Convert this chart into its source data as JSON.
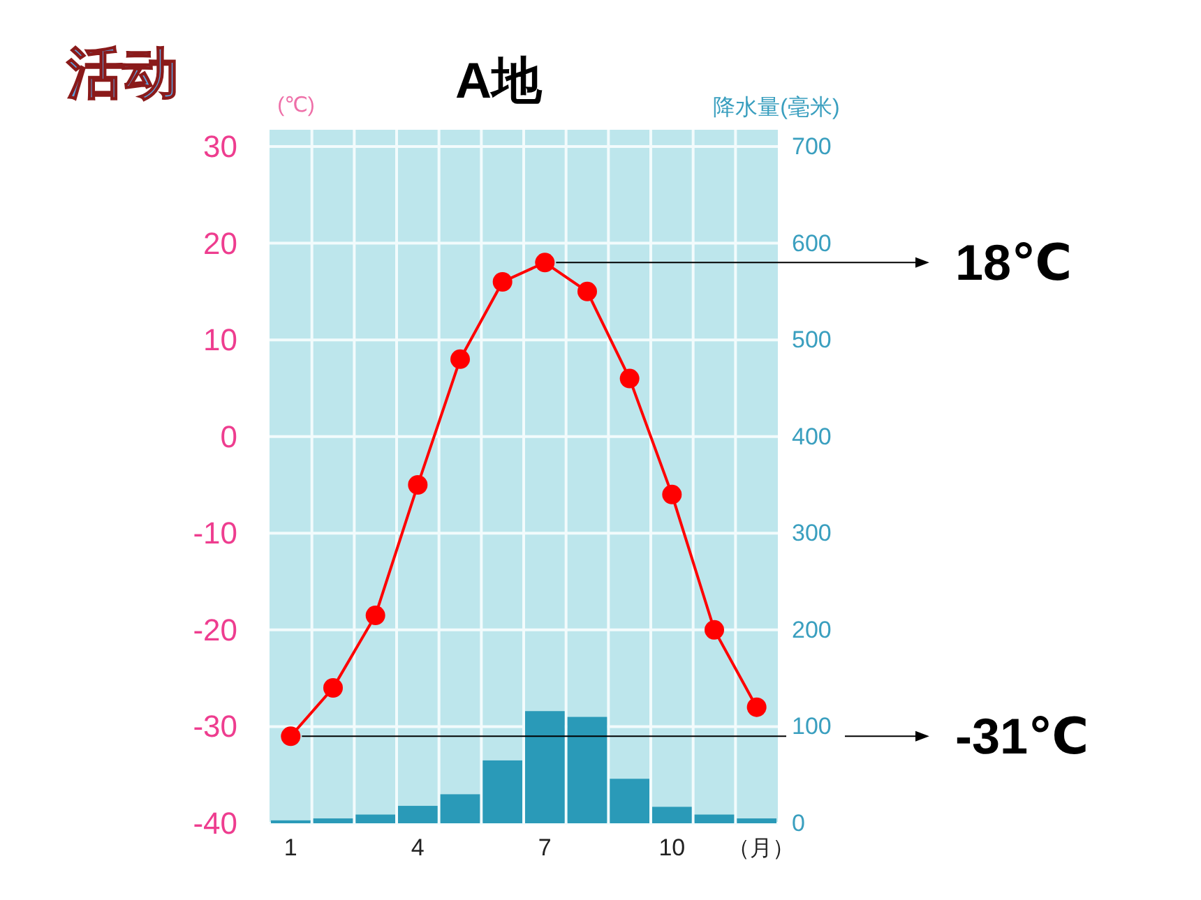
{
  "chart_data": {
    "type": "line",
    "title": "A地",
    "xlabel": "（月）",
    "ylabel": "(℃)",
    "y2label": "降水量(毫米)",
    "categories": [
      "1",
      null,
      null,
      "4",
      null,
      null,
      "7",
      null,
      null,
      "10",
      null,
      null
    ],
    "series": [
      {
        "type": "bar",
        "axis": "y2",
        "color": "#2a9ab8",
        "values": [
          3,
          5,
          9,
          18,
          30,
          65,
          116,
          110,
          46,
          17,
          9,
          5
        ]
      },
      {
        "axis": "y",
        "color": "#ff0000",
        "marker": "circle",
        "values": [
          -31,
          -26,
          -18.5,
          -5,
          8,
          16,
          18,
          15,
          6,
          -6,
          -20,
          -28
        ]
      }
    ],
    "ylim": [
      -40,
      30
    ],
    "yticks": [
      -40,
      -30,
      -20,
      -10,
      0,
      10,
      20,
      30
    ],
    "y2lim": [
      0,
      700
    ],
    "y2ticks": [
      0,
      100,
      200,
      300,
      400,
      500,
      600,
      700
    ],
    "grid": true,
    "annotations": [
      "活动",
      {
        "text": "18℃",
        "x": "7",
        "y": 18
      },
      {
        "text": "-31℃",
        "x": "1",
        "y": -31
      }
    ]
  }
}
